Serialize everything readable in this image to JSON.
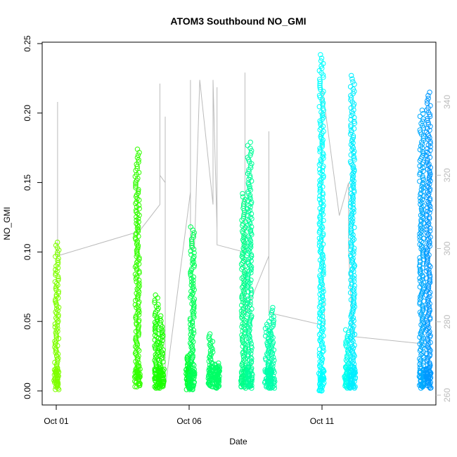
{
  "chart_data": {
    "type": "scatter",
    "title": "ATOM3 Southbound NO_GMI",
    "xlabel": "Date",
    "ylabel": "NO_GMI",
    "x_range": [
      0.0,
      14.5
    ],
    "x_origin_label": "Oct 01",
    "x_ticks": [
      {
        "value": 0,
        "label": "Oct 01"
      },
      {
        "value": 5,
        "label": "Oct 06"
      },
      {
        "value": 10,
        "label": "Oct 11"
      }
    ],
    "ylim": [
      0.0,
      0.25
    ],
    "y_ticks": [
      {
        "value": 0.0,
        "label": "0.00"
      },
      {
        "value": 0.05,
        "label": "0.05"
      },
      {
        "value": 0.1,
        "label": "0.10"
      },
      {
        "value": 0.15,
        "label": "0.15"
      },
      {
        "value": 0.2,
        "label": "0.20"
      },
      {
        "value": 0.25,
        "label": "0.25"
      }
    ],
    "y2lim": [
      258,
      350
    ],
    "y2_ticks": [
      {
        "value": 260,
        "label": "260"
      },
      {
        "value": 280,
        "label": "280"
      },
      {
        "value": 300,
        "label": "300"
      },
      {
        "value": 320,
        "label": "320"
      },
      {
        "value": 340,
        "label": "340"
      }
    ],
    "series": [
      {
        "kind": "NO_GMI",
        "groups": [
          {
            "x": 0.02,
            "ymin": 0.001,
            "ymax": 0.107,
            "color": "#7FFF00"
          },
          {
            "x": 3.05,
            "ymin": 0.003,
            "ymax": 0.174,
            "color": "#33FF00"
          },
          {
            "x": 3.78,
            "ymin": 0.002,
            "ymax": 0.069,
            "color": "#1AFF00"
          },
          {
            "x": 3.95,
            "ymin": 0.002,
            "ymax": 0.054,
            "color": "#1AFF00"
          },
          {
            "x": 4.98,
            "ymin": 0.001,
            "ymax": 0.026,
            "color": "#00FF33"
          },
          {
            "x": 5.12,
            "ymin": 0.001,
            "ymax": 0.118,
            "color": "#00FF55"
          },
          {
            "x": 5.82,
            "ymin": 0.003,
            "ymax": 0.041,
            "color": "#00FF66"
          },
          {
            "x": 6.05,
            "ymin": 0.002,
            "ymax": 0.02,
            "color": "#00FF66"
          },
          {
            "x": 7.05,
            "ymin": 0.002,
            "ymax": 0.142,
            "color": "#00FF88"
          },
          {
            "x": 7.28,
            "ymin": 0.002,
            "ymax": 0.179,
            "color": "#00FF99"
          },
          {
            "x": 7.95,
            "ymin": 0.002,
            "ymax": 0.05,
            "color": "#00FFAA"
          },
          {
            "x": 8.12,
            "ymin": 0.002,
            "ymax": 0.06,
            "color": "#00FFAA"
          },
          {
            "x": 9.98,
            "ymin": 0.0,
            "ymax": 0.242,
            "color": "#00FFFF"
          },
          {
            "x": 10.95,
            "ymin": 0.002,
            "ymax": 0.044,
            "color": "#00FFEE"
          },
          {
            "x": 11.15,
            "ymin": 0.002,
            "ymax": 0.227,
            "color": "#00EEFF"
          },
          {
            "x": 13.75,
            "ymin": 0.002,
            "ymax": 0.202,
            "color": "#00AAFF"
          },
          {
            "x": 14.0,
            "ymin": 0.002,
            "ymax": 0.215,
            "color": "#0099FF"
          }
        ]
      },
      {
        "kind": "secondary-grey-trace",
        "color": "#BBBBBB",
        "points": [
          [
            0.05,
            298.5
          ],
          [
            0.05,
            340.0
          ],
          [
            0.05,
            298.0
          ],
          [
            3.05,
            304.5
          ],
          [
            3.05,
            320.0
          ],
          [
            3.05,
            304.0
          ],
          [
            3.9,
            312.0
          ],
          [
            3.9,
            345.0
          ],
          [
            3.9,
            320.0
          ],
          [
            4.1,
            318.0
          ],
          [
            4.1,
            336.0
          ],
          [
            4.1,
            262.0
          ],
          [
            5.05,
            315.5
          ],
          [
            5.05,
            346.0
          ],
          [
            5.05,
            300.0
          ],
          [
            5.2,
            300.0
          ],
          [
            5.4,
            346.0
          ],
          [
            5.9,
            312.0
          ],
          [
            5.9,
            346.0
          ],
          [
            6.05,
            305.0
          ],
          [
            6.05,
            344.0
          ],
          [
            6.05,
            301.0
          ],
          [
            7.1,
            299.0
          ],
          [
            7.1,
            348.0
          ],
          [
            7.1,
            282.0
          ],
          [
            8.0,
            298.0
          ],
          [
            8.0,
            332.0
          ],
          [
            8.0,
            292.0
          ],
          [
            8.0,
            282.5
          ],
          [
            10.1,
            279.0
          ],
          [
            9.99,
            309.0
          ],
          [
            9.99,
            345.0
          ],
          [
            10.65,
            309.0
          ],
          [
            11.0,
            318.0
          ],
          [
            11.0,
            300.0
          ],
          [
            11.15,
            276.0
          ],
          [
            13.8,
            274.0
          ]
        ]
      }
    ],
    "grid": false,
    "legend": "none"
  }
}
